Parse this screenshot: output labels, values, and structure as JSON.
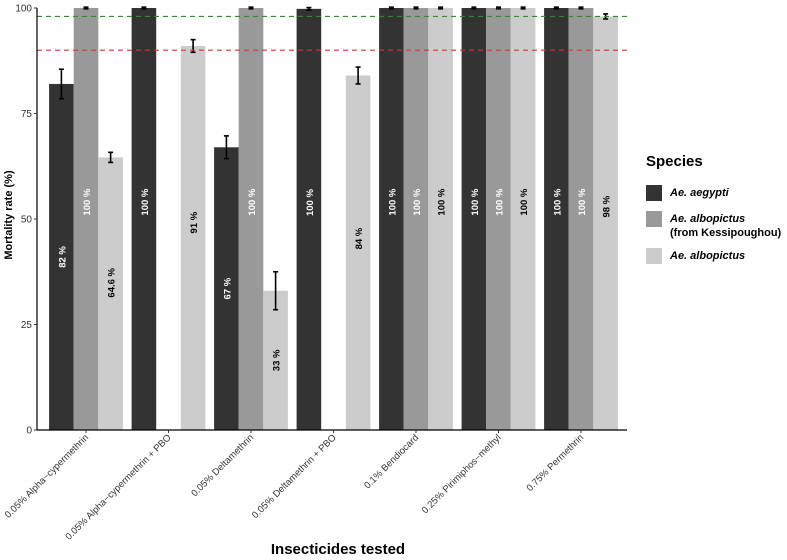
{
  "chart_data": {
    "type": "bar",
    "xlabel": "Insecticides tested",
    "ylabel": "Mortality rate (%)",
    "ylim": [
      0,
      100
    ],
    "yticks": [
      0,
      25,
      50,
      75,
      100
    ],
    "grid": false,
    "legend_position": "right",
    "legend_title": "Species",
    "categories": [
      "0.05% Alpha−cypermethrin",
      "0.05% Alpha−cypermethrin + PBO",
      "0.05% Deltamethrin",
      "0.05% Deltamethrin + PBO",
      "0.1% Bendiocard",
      "0.25% Pirimiphos−methyl",
      "0.75% Permethrin"
    ],
    "series": [
      {
        "name": "Ae. aegypti",
        "legend_sub": "",
        "color": "#333333",
        "label_color": "#ffffff",
        "values": [
          82,
          100,
          67,
          99.8,
          100,
          100,
          100
        ],
        "errors": [
          3.5,
          0.2,
          2.7,
          0.3,
          0.2,
          0.2,
          0.2
        ],
        "labels": [
          "82 %",
          "100 %",
          "67 %",
          "100 %",
          "100 %",
          "100 %",
          "100 %"
        ]
      },
      {
        "name": "Ae. albopictus",
        "legend_sub": "(from Kessipoughou)",
        "color": "#999999",
        "label_color": "#ffffff",
        "values": [
          100,
          null,
          100,
          null,
          100,
          100,
          100
        ],
        "errors": [
          0.2,
          null,
          0.2,
          null,
          0.2,
          0.2,
          0.2
        ],
        "labels": [
          "100 %",
          null,
          "100 %",
          null,
          "100 %",
          "100 %",
          "100 %"
        ]
      },
      {
        "name": "Ae. albopictus",
        "legend_sub": "",
        "color": "#cccccc",
        "label_color": "#000000",
        "values": [
          64.6,
          91,
          33,
          84,
          100,
          100,
          98
        ],
        "errors": [
          1.2,
          1.5,
          4.5,
          2.0,
          0.2,
          0.2,
          0.6
        ],
        "labels": [
          "64.6 %",
          "91 %",
          "33 %",
          "84 %",
          "100 %",
          "100 %",
          "98 %"
        ]
      }
    ],
    "reference_lines": [
      {
        "value": 98,
        "color": "#2e8b2e",
        "style": "dashed"
      },
      {
        "value": 90,
        "color": "#e03030",
        "style": "dashed"
      }
    ]
  }
}
